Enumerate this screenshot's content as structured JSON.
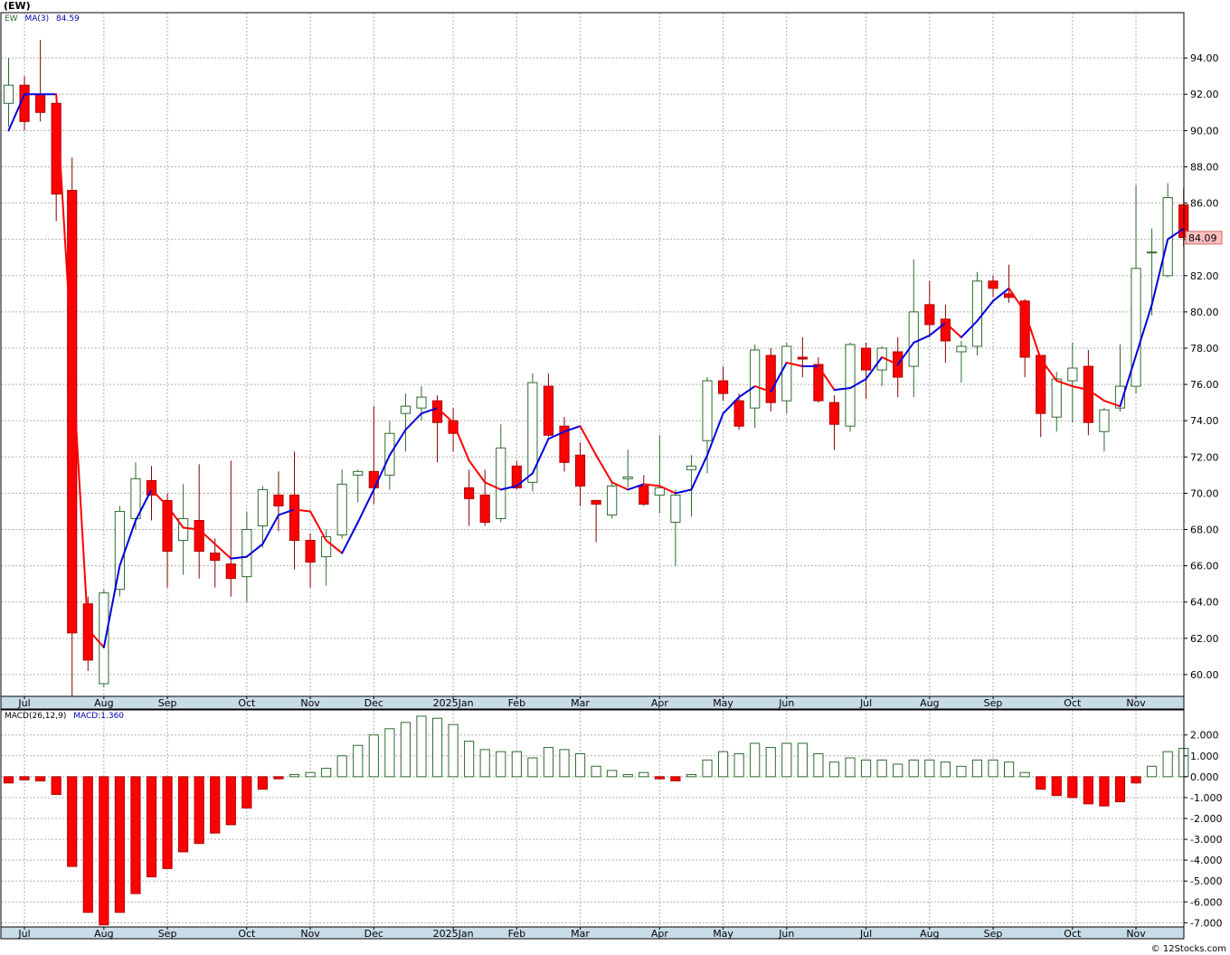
{
  "title": "(EW)",
  "legend": {
    "ticker": "EW",
    "ma_label": "MA(3)",
    "ma_value": "84.59",
    "macd_label": "MACD(26,12,9)",
    "macd_name": "MACD:",
    "macd_value": "1.360"
  },
  "last_price_label": "84.09",
  "credit": "© 12Stocks.com",
  "colors": {
    "up": "#2e6b2e",
    "down": "#ff0000",
    "ma_up": "#0000dd",
    "ma_down": "#ff0000",
    "grid": "#b0b0b0",
    "axis_strip": "#c8dce8",
    "price_badge": "#ffc0c0"
  },
  "chart_data": {
    "type": "candlestick",
    "x_tick_labels": [
      "Jul",
      "Aug",
      "Sep",
      "Oct",
      "Nov",
      "Dec",
      "2025Jan",
      "Feb",
      "Mar",
      "Apr",
      "May",
      "Jun",
      "Jul",
      "Aug",
      "Sep",
      "Oct",
      "Nov"
    ],
    "x_tick_bars": [
      1,
      6,
      10,
      15,
      19,
      23,
      28,
      32,
      36,
      41,
      45,
      49,
      54,
      58,
      62,
      67,
      71
    ],
    "price_axis": {
      "ylim": [
        58.8,
        96.5
      ],
      "ticks": [
        "94.00",
        "92.00",
        "90.00",
        "88.00",
        "86.00",
        "84.00",
        "82.00",
        "80.00",
        "78.00",
        "76.00",
        "74.00",
        "72.00",
        "70.00",
        "68.00",
        "66.00",
        "64.00",
        "62.00",
        "60.00"
      ]
    },
    "macd_axis": {
      "ylim": [
        -7.2,
        3.2
      ],
      "ticks": [
        "2.000",
        "1.000",
        "0.000",
        "-1.000",
        "-2.000",
        "-3.000",
        "-4.000",
        "-5.000",
        "-6.000",
        "-7.000"
      ]
    },
    "candles": [
      [
        91.5,
        94.0,
        90.2,
        92.5
      ],
      [
        92.5,
        93.0,
        90.0,
        90.5
      ],
      [
        92.0,
        95.0,
        90.5,
        91.0
      ],
      [
        91.5,
        91.5,
        85.0,
        86.5
      ],
      [
        86.7,
        88.5,
        58.8,
        62.3
      ],
      [
        63.9,
        64.3,
        60.2,
        60.8
      ],
      [
        59.5,
        64.7,
        59.3,
        64.5
      ],
      [
        64.7,
        69.3,
        64.3,
        69.0
      ],
      [
        68.6,
        71.7,
        68.0,
        70.8
      ],
      [
        70.7,
        71.5,
        68.5,
        69.9
      ],
      [
        69.6,
        70.0,
        64.8,
        66.8
      ],
      [
        67.4,
        70.5,
        65.5,
        68.6
      ],
      [
        68.5,
        71.6,
        65.3,
        66.8
      ],
      [
        66.7,
        67.5,
        64.8,
        66.3
      ],
      [
        66.1,
        71.8,
        64.3,
        65.3
      ],
      [
        65.4,
        69.0,
        64.0,
        68.0
      ],
      [
        68.2,
        70.4,
        67.0,
        70.2
      ],
      [
        69.9,
        71.2,
        67.9,
        69.3
      ],
      [
        69.9,
        72.3,
        65.8,
        67.4
      ],
      [
        67.4,
        67.8,
        64.8,
        66.2
      ],
      [
        66.5,
        68.0,
        64.9,
        67.6
      ],
      [
        67.7,
        71.3,
        67.5,
        70.5
      ],
      [
        71.0,
        71.3,
        69.5,
        71.2
      ],
      [
        71.2,
        74.8,
        69.4,
        70.3
      ],
      [
        71.0,
        74.0,
        70.2,
        73.3
      ],
      [
        74.4,
        75.5,
        72.3,
        74.8
      ],
      [
        74.7,
        75.9,
        74.0,
        75.3
      ],
      [
        75.1,
        75.4,
        71.7,
        73.9
      ],
      [
        74.0,
        74.7,
        72.3,
        73.3
      ],
      [
        70.3,
        71.3,
        68.2,
        69.7
      ],
      [
        69.9,
        71.3,
        68.2,
        68.4
      ],
      [
        68.6,
        73.8,
        68.4,
        72.5
      ],
      [
        71.5,
        71.8,
        70.2,
        70.3
      ],
      [
        70.6,
        76.6,
        70.1,
        76.1
      ],
      [
        75.9,
        76.6,
        73.1,
        73.2
      ],
      [
        73.7,
        74.2,
        71.2,
        71.7
      ],
      [
        72.1,
        72.8,
        69.3,
        70.4
      ],
      [
        69.6,
        69.6,
        67.3,
        69.4
      ],
      [
        68.8,
        70.7,
        68.6,
        70.4
      ],
      [
        70.8,
        72.4,
        70.3,
        70.9
      ],
      [
        70.4,
        71.0,
        69.3,
        69.4
      ],
      [
        69.9,
        73.2,
        68.9,
        70.3
      ],
      [
        68.4,
        70.2,
        66.0,
        69.9
      ],
      [
        71.3,
        72.1,
        68.7,
        71.5
      ],
      [
        72.9,
        76.4,
        71.1,
        76.2
      ],
      [
        76.2,
        77.0,
        75.1,
        75.5
      ],
      [
        75.1,
        75.5,
        73.5,
        73.7
      ],
      [
        74.7,
        78.2,
        73.6,
        77.9
      ],
      [
        77.6,
        78.0,
        74.5,
        75.0
      ],
      [
        75.1,
        78.3,
        74.4,
        78.1
      ],
      [
        77.5,
        78.6,
        76.4,
        77.4
      ],
      [
        77.1,
        77.5,
        75.0,
        75.1
      ],
      [
        75.0,
        75.4,
        72.4,
        73.8
      ],
      [
        73.7,
        78.3,
        73.4,
        78.2
      ],
      [
        78.0,
        78.3,
        75.2,
        76.8
      ],
      [
        76.8,
        78.1,
        75.9,
        78.0
      ],
      [
        77.8,
        78.6,
        75.3,
        76.4
      ],
      [
        77.0,
        82.9,
        75.3,
        80.0
      ],
      [
        80.4,
        81.7,
        78.6,
        79.3
      ],
      [
        79.6,
        80.4,
        77.2,
        78.4
      ],
      [
        77.8,
        78.4,
        76.1,
        78.1
      ],
      [
        78.1,
        82.2,
        77.6,
        81.7
      ],
      [
        81.7,
        82.0,
        80.8,
        81.3
      ],
      [
        81.0,
        82.6,
        80.5,
        80.8
      ],
      [
        80.6,
        80.7,
        76.4,
        77.5
      ],
      [
        77.6,
        77.6,
        73.1,
        74.4
      ],
      [
        74.2,
        76.7,
        73.4,
        76.3
      ],
      [
        76.2,
        78.3,
        73.9,
        76.9
      ],
      [
        77.0,
        77.9,
        73.2,
        73.9
      ],
      [
        73.4,
        74.7,
        72.3,
        74.6
      ],
      [
        74.7,
        78.2,
        74.5,
        75.9
      ],
      [
        75.9,
        87.0,
        75.5,
        82.4
      ],
      [
        83.3,
        84.6,
        79.8,
        83.3
      ],
      [
        82.0,
        87.1,
        81.9,
        86.3
      ],
      [
        85.9,
        86.8,
        83.6,
        84.1
      ]
    ],
    "ma3": [
      90.0,
      92.0,
      92.0,
      92.0,
      77.5,
      62.5,
      61.5,
      66.0,
      68.5,
      70.2,
      69.3,
      68.1,
      68.0,
      67.2,
      66.4,
      66.5,
      67.2,
      68.8,
      69.1,
      69.0,
      67.4,
      66.7,
      68.4,
      70.2,
      72.1,
      73.5,
      74.4,
      74.7,
      73.9,
      71.8,
      70.6,
      70.2,
      70.4,
      71.1,
      73.0,
      73.4,
      73.7,
      72.1,
      70.6,
      70.2,
      70.5,
      70.4,
      70.0,
      70.2,
      72.1,
      74.4,
      75.3,
      75.9,
      75.6,
      77.2,
      77.0,
      77.0,
      75.7,
      75.8,
      76.3,
      77.5,
      77.1,
      78.3,
      78.7,
      79.4,
      78.6,
      79.5,
      80.6,
      81.3,
      80.0,
      77.4,
      76.2,
      75.9,
      75.7,
      75.1,
      74.8,
      77.6,
      80.4,
      84.0,
      84.59
    ],
    "macd_hist": [
      -0.3,
      -0.15,
      -0.2,
      -0.85,
      -4.3,
      -6.5,
      -7.1,
      -6.5,
      -5.6,
      -4.8,
      -4.4,
      -3.6,
      -3.2,
      -2.7,
      -2.3,
      -1.5,
      -0.6,
      -0.1,
      0.1,
      0.2,
      0.4,
      1.0,
      1.5,
      2.0,
      2.3,
      2.6,
      2.9,
      2.8,
      2.5,
      1.7,
      1.3,
      1.2,
      1.2,
      0.9,
      1.4,
      1.3,
      1.1,
      0.5,
      0.3,
      0.1,
      0.2,
      -0.1,
      -0.2,
      0.1,
      0.8,
      1.2,
      1.1,
      1.6,
      1.4,
      1.6,
      1.6,
      1.1,
      0.7,
      0.9,
      0.8,
      0.8,
      0.6,
      0.8,
      0.8,
      0.7,
      0.5,
      0.8,
      0.8,
      0.7,
      0.2,
      -0.6,
      -0.9,
      -1.0,
      -1.3,
      -1.4,
      -1.2,
      -0.3,
      0.5,
      1.2,
      1.36
    ]
  }
}
